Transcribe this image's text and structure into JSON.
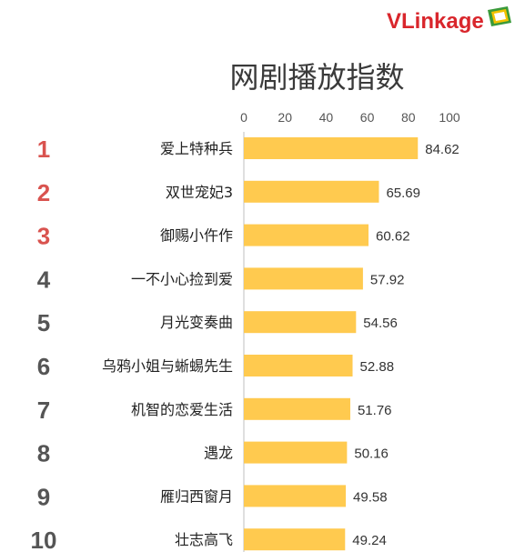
{
  "brand": {
    "name": "VLinkage",
    "colors": {
      "text": "#d9262c",
      "icon_green": "#3a9a3a",
      "icon_yellow": "#f2c200"
    }
  },
  "chart_data": {
    "type": "bar",
    "orientation": "horizontal",
    "title": "网剧播放指数",
    "xlabel": "",
    "ylabel": "",
    "xlim": [
      0,
      100
    ],
    "x_ticks": [
      0,
      20,
      40,
      60,
      80,
      100
    ],
    "x_axis_position": "top",
    "grid": false,
    "ranks": [
      "1",
      "2",
      "3",
      "4",
      "5",
      "6",
      "7",
      "8",
      "9",
      "10"
    ],
    "categories": [
      "爱上特种兵",
      "双世宠妃3",
      "御赐小仵作",
      "一不小心捡到爱",
      "月光变奏曲",
      "乌鸦小姐与蜥蜴先生",
      "机智的恋爱生活",
      "遇龙",
      "雁归西窗月",
      "壮志高飞"
    ],
    "values": [
      84.62,
      65.69,
      60.62,
      57.92,
      54.56,
      52.88,
      51.76,
      50.16,
      49.58,
      49.24
    ],
    "value_labels": [
      "84.62",
      "65.69",
      "60.62",
      "57.92",
      "54.56",
      "52.88",
      "51.76",
      "50.16",
      "49.58",
      "49.24"
    ],
    "colors": {
      "bar": "#ffca4f",
      "axis": "#bfbfbf",
      "rank_top3": "#d9534f",
      "rank_other": "#555555"
    }
  }
}
